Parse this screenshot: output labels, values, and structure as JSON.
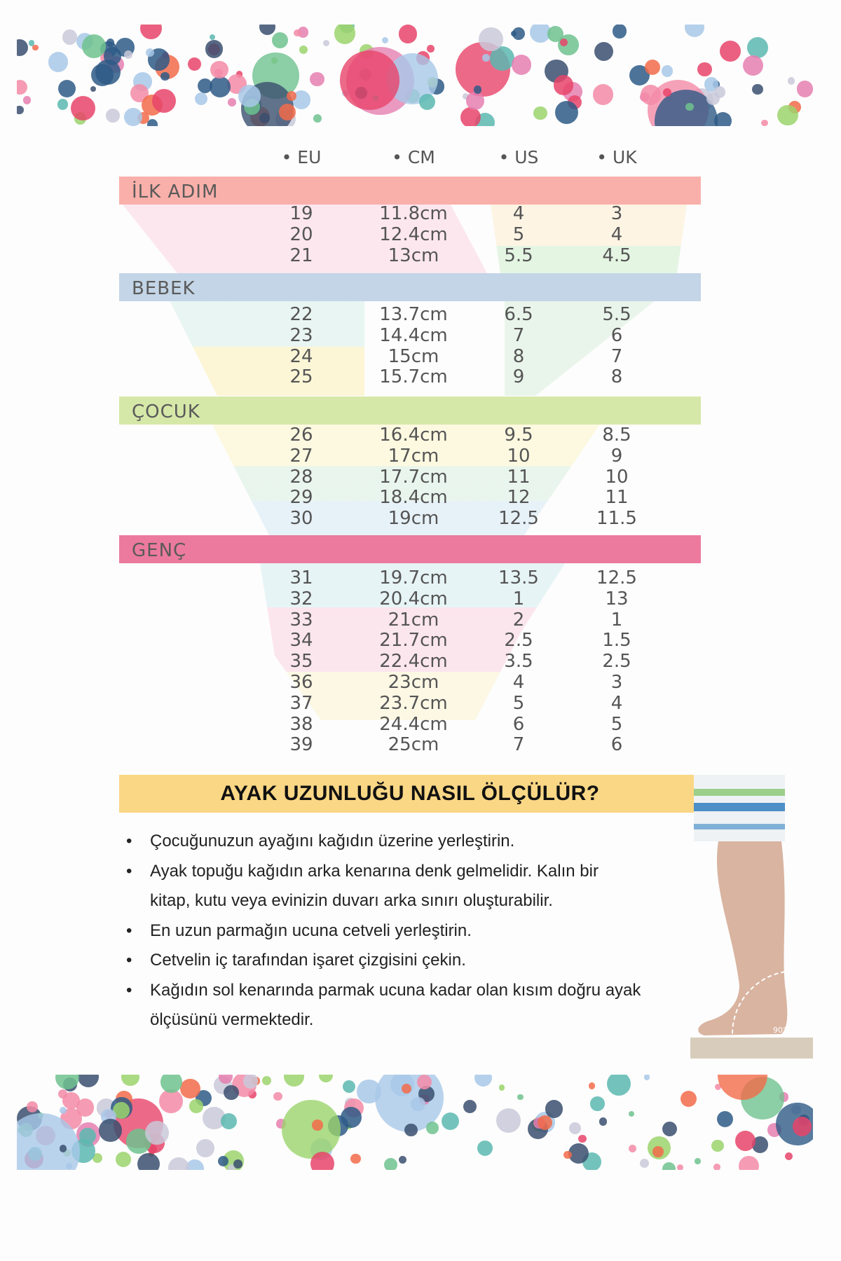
{
  "columns": [
    "EU",
    "CM",
    "US",
    "UK"
  ],
  "groups": [
    {
      "label": "İLK ADIM",
      "color": "#f9b0aa",
      "rows": [
        [
          "19",
          "11.8cm",
          "4",
          "3"
        ],
        [
          "20",
          "12.4cm",
          "5",
          "4"
        ],
        [
          "21",
          "13cm",
          "5.5",
          "4.5"
        ]
      ]
    },
    {
      "label": "BEBEK",
      "color": "#c3d5e6",
      "rows": [
        [
          "22",
          "13.7cm",
          "6.5",
          "5.5"
        ],
        [
          "23",
          "14.4cm",
          "7",
          "6"
        ],
        [
          "24",
          "15cm",
          "8",
          "7"
        ],
        [
          "25",
          "15.7cm",
          "9",
          "8"
        ]
      ]
    },
    {
      "label": "ÇOCUK",
      "color": "#d6e8a8",
      "rows": [
        [
          "26",
          "16.4cm",
          "9.5",
          "8.5"
        ],
        [
          "27",
          "17cm",
          "10",
          "9"
        ],
        [
          "28",
          "17.7cm",
          "11",
          "10"
        ],
        [
          "29",
          "18.4cm",
          "12",
          "11"
        ],
        [
          "30",
          "19cm",
          "12.5",
          "11.5"
        ]
      ]
    },
    {
      "label": "GENÇ",
      "color": "#ec7a9e",
      "rows": [
        [
          "31",
          "19.7cm",
          "13.5",
          "12.5"
        ],
        [
          "32",
          "20.4cm",
          "1",
          "13"
        ],
        [
          "33",
          "21cm",
          "2",
          "1"
        ],
        [
          "34",
          "21.7cm",
          "2.5",
          "1.5"
        ],
        [
          "35",
          "22.4cm",
          "3.5",
          "2.5"
        ],
        [
          "36",
          "23cm",
          "4",
          "3"
        ],
        [
          "37",
          "23.7cm",
          "5",
          "4"
        ],
        [
          "38",
          "24.4cm",
          "6",
          "5"
        ],
        [
          "39",
          "25cm",
          "7",
          "6"
        ]
      ]
    }
  ],
  "howto": {
    "title": "AYAK UZUNLUĞU NASIL ÖLÇÜLÜR?",
    "title_bg": "#fad785",
    "steps": [
      "Çocuğunuzun ayağını kağıdın üzerine yerleştirin.",
      "Ayak topuğu kağıdın arka kenarına denk gelmelidir. Kalın bir kitap, kutu veya evinizin duvarı arka sınırı oluşturabilir.",
      "En uzun parmağın ucuna cetveli yerleştirin.",
      "Cetvelin iç tarafından işaret çizgisini çekin.",
      "Kağıdın sol kenarında parmak ucuna kadar olan kısım doğru ayak ölçüsünü vermektedir."
    ],
    "angle_label": "90°"
  }
}
